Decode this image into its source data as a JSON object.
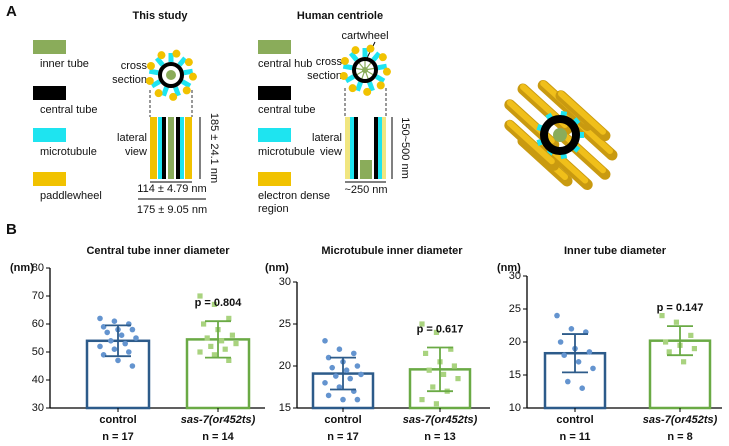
{
  "panel_a": {
    "label": "A",
    "this_study": {
      "title": "This study",
      "cross_section_label": [
        "cross",
        "section"
      ],
      "lateral_view_label": [
        "lateral",
        "view"
      ],
      "legend": [
        "inner tube",
        "central tube",
        "microtubule",
        "paddlewheel"
      ],
      "height": "185 ± 24.1 nm",
      "inner_width": "114 ± 4.79 nm",
      "outer_width": "175 ± 9.05 nm"
    },
    "human": {
      "title": "Human centriole",
      "cartwheel_label": "cartwheel",
      "cross_section_label": [
        "cross",
        "section"
      ],
      "lateral_view_label": [
        "lateral",
        "view"
      ],
      "legend": [
        "central hub",
        "central tube",
        "microtubule",
        [
          "electron dense",
          "region"
        ]
      ],
      "height": "150~500 nm",
      "width": "~250 nm"
    }
  },
  "panel_b_label": "B",
  "chart_data": [
    {
      "type": "bar",
      "title": "Central tube inner diameter",
      "y_label": "(nm)",
      "categories": [
        "control",
        "sas-7(or452ts)"
      ],
      "n_labels": [
        "n = 17",
        "n = 14"
      ],
      "values": [
        54,
        54.5
      ],
      "errors": [
        5.5,
        6.5
      ],
      "points": [
        [
          62,
          61,
          60,
          59,
          58,
          58,
          57,
          56,
          55,
          54,
          53,
          52,
          51,
          50,
          49,
          47,
          45
        ],
        [
          70,
          67,
          62,
          60,
          58,
          56,
          55,
          54,
          53,
          52,
          51,
          50,
          49,
          47
        ]
      ],
      "colors": [
        "#2d5b8a",
        "#6aaa45"
      ],
      "point_colors": [
        "#6494cf",
        "#a9d37f"
      ],
      "annotation": "p = 0.804",
      "ylim": [
        30,
        80
      ],
      "yticks": [
        30,
        40,
        50,
        60,
        70,
        80
      ]
    },
    {
      "type": "bar",
      "title": "Microtubule inner diameter",
      "y_label": "(nm)",
      "categories": [
        "control",
        "sas-7(or452ts)"
      ],
      "n_labels": [
        "n = 17",
        "n = 13"
      ],
      "values": [
        19.1,
        19.6
      ],
      "errors": [
        1.9,
        2.6
      ],
      "points": [
        [
          23,
          22,
          21.5,
          21,
          20.5,
          20,
          19.8,
          19.5,
          19,
          18.8,
          18.5,
          18,
          17.5,
          17,
          16.5,
          16,
          16
        ],
        [
          25,
          24,
          22,
          21.5,
          20.5,
          20,
          19.5,
          19,
          18.5,
          17.5,
          17,
          16,
          15.5
        ]
      ],
      "colors": [
        "#2d5b8a",
        "#6aaa45"
      ],
      "point_colors": [
        "#6494cf",
        "#a9d37f"
      ],
      "annotation": "p = 0.617",
      "ylim": [
        15,
        30
      ],
      "yticks": [
        15,
        20,
        25,
        30
      ]
    },
    {
      "type": "bar",
      "title": "Inner tube diameter",
      "y_label": "(nm)",
      "categories": [
        "control",
        "sas-7(or452ts)"
      ],
      "n_labels": [
        "n = 11",
        "n = 8"
      ],
      "values": [
        18.3,
        20.2
      ],
      "errors": [
        2.9,
        2.2
      ],
      "points": [
        [
          24,
          22,
          21.5,
          20,
          19,
          18.5,
          18,
          17,
          16,
          14,
          13
        ],
        [
          24,
          23,
          21,
          20,
          19.5,
          19,
          18.5,
          17
        ]
      ],
      "colors": [
        "#2d5b8a",
        "#6aaa45"
      ],
      "point_colors": [
        "#6494cf",
        "#a9d37f"
      ],
      "annotation": "p = 0.147",
      "ylim": [
        10,
        30
      ],
      "yticks": [
        10,
        15,
        20,
        25,
        30
      ]
    }
  ]
}
